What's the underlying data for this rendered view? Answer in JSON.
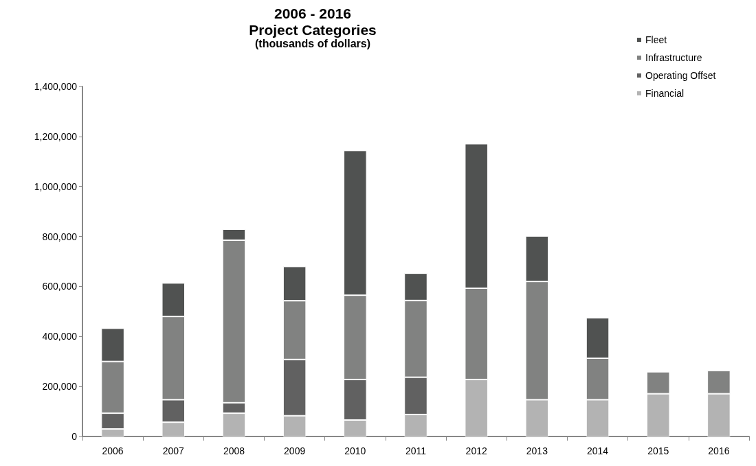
{
  "chart_data": {
    "type": "bar",
    "title": "2006 - 2016\nProject Categories",
    "subtitle": "(thousands of dollars)",
    "categories": [
      "2006",
      "2007",
      "2008",
      "2009",
      "2010",
      "2011",
      "2012",
      "2013",
      "2014",
      "2015",
      "2016"
    ],
    "series": [
      {
        "name": "Financial",
        "color": "#b3b3b3",
        "values": [
          30000,
          57000,
          93000,
          83000,
          66000,
          88000,
          228000,
          147000,
          147000,
          171000,
          171000
        ]
      },
      {
        "name": "Operating Offset",
        "color": "#616161",
        "values": [
          63000,
          90000,
          42000,
          225000,
          162000,
          149000,
          null,
          null,
          null,
          null,
          null
        ]
      },
      {
        "name": "Infrastructure",
        "color": "#818281",
        "values": [
          207000,
          333000,
          650000,
          235000,
          337000,
          307000,
          365000,
          473000,
          166000,
          88000,
          93000
        ]
      },
      {
        "name": "Fleet",
        "color": "#505251",
        "values": [
          133000,
          134000,
          44000,
          137000,
          579000,
          109000,
          578000,
          182000,
          162000,
          null,
          null
        ]
      }
    ],
    "stacked": true,
    "ylim": [
      0,
      1400000
    ],
    "yticks": [
      {
        "value": 0,
        "label": "0"
      },
      {
        "value": 200000,
        "label": "200,000"
      },
      {
        "value": 400000,
        "label": "400,000"
      },
      {
        "value": 600000,
        "label": "600,000"
      },
      {
        "value": 800000,
        "label": "800,000"
      },
      {
        "value": 1000000,
        "label": "1,000,000"
      },
      {
        "value": 1200000,
        "label": "1,200,000"
      },
      {
        "value": 1400000,
        "label": "1,400,000"
      }
    ],
    "grid": false,
    "legend": "top right"
  }
}
